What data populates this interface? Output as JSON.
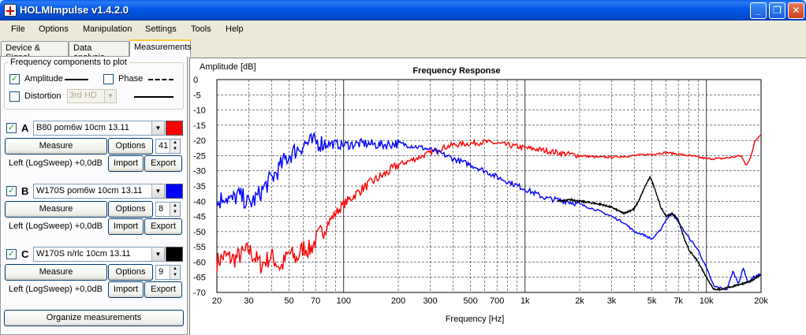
{
  "window": {
    "title": "HOLMImpulse  v1.4.2.0",
    "min_glyph": "_",
    "max_glyph": "❐",
    "close_glyph": "✕"
  },
  "menu": [
    "File",
    "Options",
    "Manipulation",
    "Settings",
    "Tools",
    "Help"
  ],
  "tabs": [
    "Device & Signal",
    "Data analysis",
    "Measurements"
  ],
  "components": {
    "legend": "Frequency components to plot",
    "amplitude": {
      "label": "Amplitude",
      "checked": true
    },
    "phase": {
      "label": "Phase",
      "checked": false
    },
    "distortion": {
      "label": "Distortion",
      "checked": false,
      "select_value": "3rd HD"
    }
  },
  "measurements": [
    {
      "letter": "A",
      "checked": true,
      "name": "B80 pom6w 10cm 13.11",
      "color": "#ff0000",
      "measure_label": "Measure",
      "options_label": "Options",
      "spin": "41",
      "status": "Left (LogSweep) +0,0dB",
      "import_label": "Import",
      "export_label": "Export"
    },
    {
      "letter": "B",
      "checked": true,
      "name": "W170S pom6w 10cm 13.11",
      "color": "#0000ff",
      "measure_label": "Measure",
      "options_label": "Options",
      "spin": "8",
      "status": "Left (LogSweep) +0,0dB",
      "import_label": "Import",
      "export_label": "Export"
    },
    {
      "letter": "C",
      "checked": true,
      "name": "W170S n/rlc 10cm 13.11",
      "color": "#000000",
      "measure_label": "Measure",
      "options_label": "Options",
      "spin": "9",
      "status": "Left (LogSweep) +0,0dB",
      "import_label": "Import",
      "export_label": "Export"
    }
  ],
  "organize_label": "Organize measurements",
  "chart_data": {
    "type": "line",
    "title": "Frequency Response",
    "ylabel": "Amplitude [dB]",
    "xlabel": "Frequency [Hz]",
    "xscale": "log",
    "xlim": [
      20,
      20000
    ],
    "ylim": [
      -70,
      0
    ],
    "x_ticks": [
      {
        "v": 20,
        "l": "20"
      },
      {
        "v": 30,
        "l": "30"
      },
      {
        "v": 50,
        "l": "50"
      },
      {
        "v": 70,
        "l": "70"
      },
      {
        "v": 100,
        "l": "100"
      },
      {
        "v": 200,
        "l": "200"
      },
      {
        "v": 300,
        "l": "300"
      },
      {
        "v": 500,
        "l": "500"
      },
      {
        "v": 700,
        "l": "700"
      },
      {
        "v": 1000,
        "l": "1k"
      },
      {
        "v": 2000,
        "l": "2k"
      },
      {
        "v": 3000,
        "l": "3k"
      },
      {
        "v": 5000,
        "l": "5k"
      },
      {
        "v": 7000,
        "l": "7k"
      },
      {
        "v": 10000,
        "l": "10k"
      },
      {
        "v": 20000,
        "l": "20k"
      }
    ],
    "y_ticks": [
      0,
      -5,
      -10,
      -15,
      -20,
      -25,
      -30,
      -35,
      -40,
      -45,
      -50,
      -55,
      -60,
      -65,
      -70
    ],
    "grid": true,
    "series": [
      {
        "color": "#ff0000",
        "x": [
          20,
          22,
          25,
          30,
          35,
          40,
          45,
          50,
          55,
          60,
          65,
          70,
          80,
          90,
          100,
          120,
          140,
          170,
          200,
          250,
          300,
          350,
          400,
          500,
          600,
          700,
          800,
          1000,
          1200,
          1500,
          2000,
          2500,
          3000,
          4000,
          5000,
          6000,
          7000,
          8000,
          9000,
          10000,
          12000,
          14000,
          15500,
          16500,
          17500,
          18500,
          20000
        ],
        "y": [
          -60,
          -58,
          -59,
          -56,
          -61,
          -58,
          -62,
          -57,
          -59,
          -55,
          -56,
          -53,
          -48,
          -44,
          -41,
          -37,
          -34,
          -31,
          -28,
          -26,
          -24,
          -22.5,
          -21.5,
          -21,
          -20.5,
          -21,
          -21.5,
          -22.5,
          -23,
          -24,
          -25,
          -25.5,
          -25.5,
          -25,
          -24.5,
          -24,
          -24.5,
          -25,
          -25.5,
          -26,
          -26,
          -25.5,
          -25,
          -28,
          -26,
          -20,
          -18
        ]
      },
      {
        "color": "#0000ff",
        "x": [
          20,
          22,
          24,
          26,
          28,
          30,
          33,
          37,
          42,
          48,
          55,
          62,
          70,
          80,
          100,
          130,
          160,
          200,
          250,
          300,
          350,
          400,
          500,
          600,
          700,
          800,
          1000,
          1300,
          1700,
          2000,
          2500,
          3000,
          3500,
          4000,
          4500,
          5000,
          5500,
          6000,
          6500,
          7000,
          8000,
          9000,
          10000,
          11000,
          13000,
          14000,
          15000,
          16000,
          17000,
          18000,
          20000
        ],
        "y": [
          -41,
          -38,
          -40,
          -38,
          -39,
          -41,
          -39,
          -35,
          -31,
          -26,
          -23,
          -21,
          -20.5,
          -21,
          -21.5,
          -21,
          -21.5,
          -21,
          -22,
          -23,
          -24.5,
          -26,
          -28,
          -30,
          -32,
          -33.5,
          -36,
          -39,
          -40,
          -41,
          -43,
          -45,
          -47,
          -50,
          -51,
          -52.5,
          -50,
          -46,
          -44,
          -47,
          -52,
          -56,
          -62,
          -68,
          -69,
          -63,
          -67,
          -62,
          -67,
          -65,
          -64
        ]
      },
      {
        "color": "#000000",
        "x": [
          1500,
          1800,
          2000,
          2300,
          2600,
          3000,
          3500,
          4000,
          4300,
          4600,
          4900,
          5200,
          5600,
          6000,
          6500,
          7000,
          7500,
          8000,
          9000,
          10000,
          11000,
          12000,
          14000,
          16000,
          18000,
          20000
        ],
        "y": [
          -40,
          -39.5,
          -40,
          -40.5,
          -41,
          -42,
          -44,
          -42.5,
          -39,
          -35,
          -32,
          -36,
          -42,
          -45,
          -44,
          -46,
          -52,
          -56,
          -60,
          -65,
          -69,
          -69,
          -68,
          -67,
          -66,
          -64
        ]
      }
    ]
  }
}
